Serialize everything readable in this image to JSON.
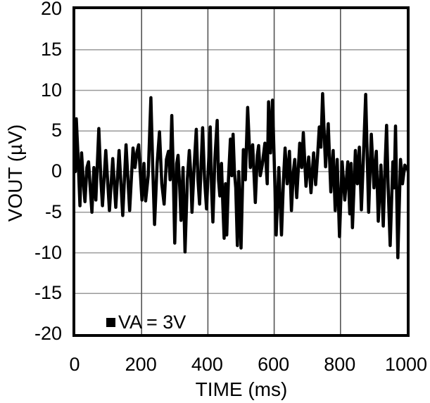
{
  "figure": {
    "background": "#ffffff",
    "text_color": "#000000"
  },
  "chart_data": {
    "type": "line",
    "title": "",
    "xlabel": "TIME (ms)",
    "ylabel": "VOUT (µV)",
    "xlim": [
      0,
      1000
    ],
    "ylim": [
      -20,
      20
    ],
    "xticks": [
      0,
      200,
      400,
      600,
      800,
      1000
    ],
    "yticks": [
      20,
      15,
      10,
      5,
      0,
      -5,
      -10,
      -15,
      -20
    ],
    "grid": true,
    "grid_color_horizontal": "#9a9a9a",
    "grid_color_vertical": "#555555",
    "border_color": "#000000",
    "legend_position": "bottom-left-inside",
    "legend_marker": "filled-square",
    "legend_label": "VA = 3V",
    "series": [
      {
        "name": "VA = 3V",
        "color": "#000000",
        "x": [
          0,
          3,
          8,
          14,
          19,
          24,
          29,
          35,
          40,
          45,
          50,
          56,
          62,
          71,
          77,
          82,
          92,
          103,
          113,
          122,
          132,
          143,
          153,
          164,
          174,
          180,
          186,
          191,
          201,
          207,
          212,
          220,
          228,
          234,
          239,
          247,
          254,
          261,
          268,
          275,
          281,
          286,
          291,
          295,
          300,
          306,
          310,
          315,
          319,
          325,
          331,
          338,
          344,
          348,
          352,
          359,
          365,
          370,
          375,
          384,
          390,
          396,
          402,
          407,
          411,
          415,
          421,
          428,
          432,
          436,
          441,
          445,
          449,
          453,
          457,
          462,
          468,
          472,
          476,
          480,
          484,
          489,
          493,
          500,
          507,
          513,
          520,
          528,
          535,
          543,
          549,
          553,
          558,
          564,
          572,
          579,
          583,
          589,
          595,
          601,
          606,
          614,
          622,
          628,
          633,
          639,
          646,
          652,
          658,
          662,
          668,
          673,
          677,
          683,
          688,
          696,
          704,
          711,
          719,
          725,
          731,
          736,
          741,
          746,
          755,
          763,
          771,
          778,
          784,
          790,
          797,
          805,
          813,
          822,
          828,
          832,
          836,
          845,
          851,
          857,
          863,
          869,
          876,
          885,
          893,
          901,
          908,
          914,
          922,
          929,
          934,
          939,
          944,
          950,
          958,
          962,
          966,
          973,
          981,
          987,
          994,
          1000
        ],
        "y": [
          0,
          6.5,
          2,
          -4.2,
          2.3,
          -1,
          -3.7,
          0.5,
          1.2,
          -2,
          -5,
          0.5,
          -3.5,
          5.3,
          -1,
          -4.2,
          2.6,
          -4.8,
          1.6,
          -4.4,
          2.6,
          -5.4,
          3.3,
          -4.8,
          2.9,
          0.5,
          2.4,
          3.3,
          -3.5,
          1,
          -3.6,
          -0.5,
          9.1,
          0,
          -6.5,
          1,
          4.9,
          -1.5,
          -4,
          1.5,
          2.5,
          -1,
          6.9,
          1,
          -8.8,
          1,
          2,
          -2,
          -6,
          0.5,
          -9.9,
          -1,
          2.6,
          0,
          -5,
          1,
          5.2,
          -1,
          -4,
          5.4,
          -1,
          -4.6,
          1,
          5.5,
          -2,
          -6.2,
          1.5,
          6.3,
          -1,
          -3,
          1,
          -4,
          -8.2,
          -1.5,
          -7.8,
          -1,
          4,
          -0.5,
          4.6,
          0,
          -2,
          -9.1,
          0,
          -9.4,
          2.7,
          -1,
          7.9,
          0.5,
          3.3,
          -3.8,
          2,
          3.2,
          -0.5,
          0.8,
          3.5,
          -1.5,
          8.6,
          2.3,
          8.8,
          0,
          -7.8,
          0.5,
          -7.8,
          -1,
          2.9,
          -1.5,
          2.5,
          -4.8,
          0,
          1.5,
          -3.2,
          0.5,
          3.5,
          0.5,
          4.8,
          -1.8,
          1.8,
          -2.6,
          2.3,
          -1.6,
          2,
          5.5,
          3,
          9.6,
          0.6,
          5.9,
          -2.5,
          2.6,
          -4.8,
          1.5,
          -8,
          1.2,
          -3.5,
          1.2,
          -5.2,
          1,
          -6.9,
          2.6,
          -1.5,
          3,
          -4.7,
          1.5,
          9.5,
          -5,
          4.6,
          -2,
          2.5,
          -6.1,
          0.8,
          -6.7,
          0,
          5.7,
          -2,
          -9.1,
          1.2,
          -2,
          5.6,
          -10.6,
          1.5,
          -1.5,
          0.8,
          0.3
        ]
      }
    ]
  }
}
